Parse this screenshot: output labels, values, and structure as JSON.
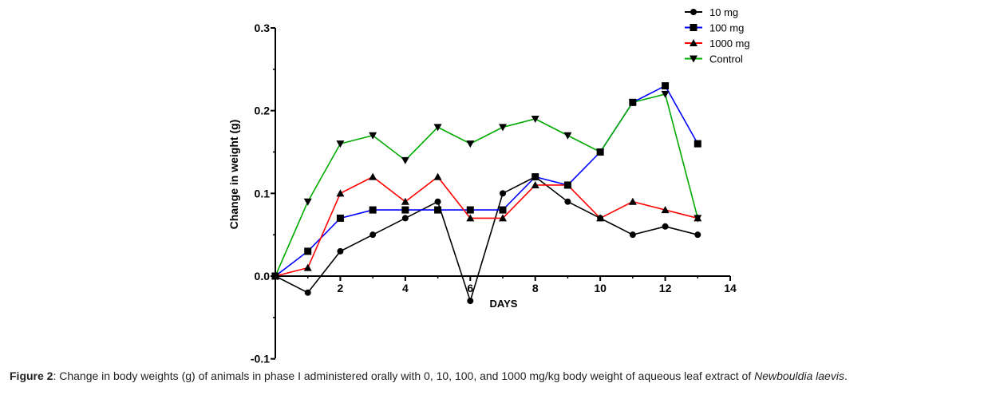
{
  "chart_data": {
    "type": "line",
    "xlabel": "DAYS",
    "ylabel": "Change in weight (g)",
    "xlim": [
      0,
      14
    ],
    "ylim": [
      -0.1,
      0.3
    ],
    "x_ticks": [
      2,
      4,
      6,
      8,
      10,
      12,
      14
    ],
    "y_ticks": [
      -0.1,
      0.0,
      0.1,
      0.2,
      0.3
    ],
    "y_tick_labels": [
      "-0.1",
      "0.0",
      "0.1",
      "0.2",
      "0.3"
    ],
    "grid": false,
    "legend_position": "top-right",
    "x": [
      0,
      1,
      2,
      3,
      4,
      5,
      6,
      7,
      8,
      9,
      10,
      11,
      12,
      13
    ],
    "series": [
      {
        "name": "10 mg",
        "color": "#000000",
        "marker": "circle",
        "values": [
          0,
          -0.02,
          0.03,
          0.05,
          0.07,
          0.09,
          -0.03,
          0.1,
          0.12,
          0.09,
          0.07,
          0.05,
          0.06,
          0.05
        ]
      },
      {
        "name": "100 mg",
        "color": "#0000ff",
        "marker": "square",
        "values": [
          0,
          0.03,
          0.07,
          0.08,
          0.08,
          0.08,
          0.08,
          0.08,
          0.12,
          0.11,
          0.15,
          0.21,
          0.23,
          0.16
        ]
      },
      {
        "name": "1000 mg",
        "color": "#ff0000",
        "marker": "triangle-up",
        "values": [
          0,
          0.01,
          0.1,
          0.12,
          0.09,
          0.12,
          0.07,
          0.07,
          0.11,
          0.11,
          0.07,
          0.09,
          0.08,
          0.07
        ]
      },
      {
        "name": "Control",
        "color": "#00aa00",
        "marker": "triangle-down",
        "values": [
          0,
          0.09,
          0.16,
          0.17,
          0.14,
          0.18,
          0.16,
          0.18,
          0.19,
          0.17,
          0.15,
          0.21,
          0.22,
          0.07
        ]
      }
    ]
  },
  "caption": {
    "label": "Figure 2",
    "text_before": ": Change in body weights (g) of animals in phase I administered orally with 0, 10, 100, and 1000 mg/kg body weight of aqueous leaf extract of ",
    "species": "Newbouldia laevis",
    "text_after": "."
  }
}
